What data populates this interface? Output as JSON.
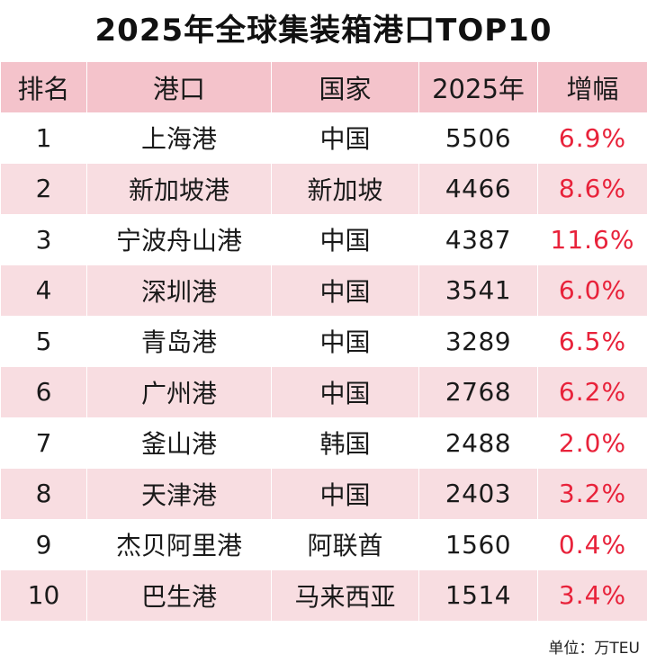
{
  "title": "2025年全球集装箱港口TOP10",
  "headers": {
    "rank": "排名",
    "port": "港口",
    "country": "国家",
    "year": "2025年",
    "growth": "增幅"
  },
  "colors": {
    "header_bg": "#f4c3cb",
    "shaded_row": "#f8dde1",
    "growth_text": "#e8223a"
  },
  "unit_note": "单位：万TEU",
  "chart_data": {
    "type": "table",
    "title": "2025年全球集装箱港口TOP10",
    "columns": [
      "排名",
      "港口",
      "国家",
      "2025年",
      "增幅"
    ],
    "rows": [
      {
        "rank": "1",
        "port": "上海港",
        "country": "中国",
        "teu": "5506",
        "growth": "6.9%"
      },
      {
        "rank": "2",
        "port": "新加坡港",
        "country": "新加坡",
        "teu": "4466",
        "growth": "8.6%"
      },
      {
        "rank": "3",
        "port": "宁波舟山港",
        "country": "中国",
        "teu": "4387",
        "growth": "11.6%"
      },
      {
        "rank": "4",
        "port": "深圳港",
        "country": "中国",
        "teu": "3541",
        "growth": "6.0%"
      },
      {
        "rank": "5",
        "port": "青岛港",
        "country": "中国",
        "teu": "3289",
        "growth": "6.5%"
      },
      {
        "rank": "6",
        "port": "广州港",
        "country": "中国",
        "teu": "2768",
        "growth": "6.2%"
      },
      {
        "rank": "7",
        "port": "釜山港",
        "country": "韩国",
        "teu": "2488",
        "growth": "2.0%"
      },
      {
        "rank": "8",
        "port": "天津港",
        "country": "中国",
        "teu": "2403",
        "growth": "3.2%"
      },
      {
        "rank": "9",
        "port": "杰贝阿里港",
        "country": "阿联酋",
        "teu": "1560",
        "growth": "0.4%"
      },
      {
        "rank": "10",
        "port": "巴生港",
        "country": "马来西亚",
        "teu": "1514",
        "growth": "3.4%"
      }
    ]
  }
}
